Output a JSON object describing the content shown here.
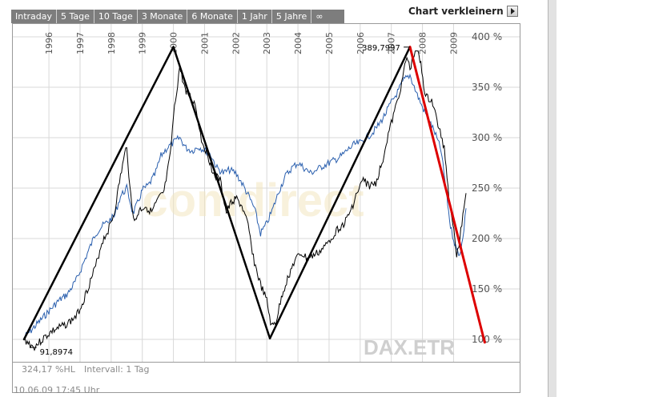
{
  "tabs": [
    "Intraday",
    "5 Tage",
    "10 Tage",
    "3 Monate",
    "6 Monate",
    "1 Jahr",
    "5 Jahre",
    "∞"
  ],
  "shrink_label": "Chart verkleinern",
  "watermark": "DAX.ETR",
  "logo_text": "comdirect",
  "footer": {
    "stat": "324,17 %HL",
    "interval": "Intervall: 1 Tag",
    "timestamp": "10.06.09   17:45 Uhr"
  },
  "colors": {
    "series_black": "#000000",
    "series_blue": "#2a5fae",
    "trend_black": "#000000",
    "trend_red": "#dd0000",
    "grid": "#d8d8d8"
  },
  "chart_data": {
    "type": "line",
    "x_ticks": [
      "1996",
      "1997",
      "1998",
      "1999",
      "2000",
      "2001",
      "2002",
      "2003",
      "2004",
      "2005",
      "2006",
      "2007",
      "2008",
      "2009"
    ],
    "y_ticks": [
      "100 %",
      "150 %",
      "200 %",
      "250 %",
      "300 %",
      "350 %",
      "400 %"
    ],
    "xlim": [
      1995.2,
      2009.4
    ],
    "ylim": [
      95,
      400
    ],
    "annotations": [
      {
        "text": "91,8974",
        "x": 1995.5,
        "y": 92
      },
      {
        "text": "389,7997",
        "x": 2007.5,
        "y": 389.8
      }
    ],
    "series": [
      {
        "values": [
          [
            1995.2,
            100
          ],
          [
            1995.4,
            95
          ],
          [
            1995.5,
            92
          ],
          [
            1995.7,
            97
          ],
          [
            1995.9,
            103
          ],
          [
            1996.1,
            108
          ],
          [
            1996.3,
            111
          ],
          [
            1996.5,
            114
          ],
          [
            1996.7,
            118
          ],
          [
            1996.9,
            124
          ],
          [
            1997.1,
            138
          ],
          [
            1997.3,
            155
          ],
          [
            1997.5,
            172
          ],
          [
            1997.7,
            196
          ],
          [
            1997.9,
            208
          ],
          [
            1998.1,
            225
          ],
          [
            1998.3,
            262
          ],
          [
            1998.5,
            293
          ],
          [
            1998.6,
            250
          ],
          [
            1998.75,
            215
          ],
          [
            1998.9,
            228
          ],
          [
            1999.1,
            232
          ],
          [
            1999.3,
            226
          ],
          [
            1999.5,
            238
          ],
          [
            1999.7,
            246
          ],
          [
            1999.9,
            282
          ],
          [
            2000.0,
            320
          ],
          [
            2000.2,
            370
          ],
          [
            2000.35,
            350
          ],
          [
            2000.5,
            342
          ],
          [
            2000.7,
            333
          ],
          [
            2000.9,
            298
          ],
          [
            2001.1,
            283
          ],
          [
            2001.3,
            263
          ],
          [
            2001.5,
            258
          ],
          [
            2001.7,
            225
          ],
          [
            2001.85,
            235
          ],
          [
            2002.0,
            240
          ],
          [
            2002.2,
            232
          ],
          [
            2002.4,
            212
          ],
          [
            2002.6,
            176
          ],
          [
            2002.8,
            154
          ],
          [
            2003.0,
            138
          ],
          [
            2003.15,
            112
          ],
          [
            2003.3,
            118
          ],
          [
            2003.5,
            145
          ],
          [
            2003.7,
            163
          ],
          [
            2003.9,
            178
          ],
          [
            2004.1,
            185
          ],
          [
            2004.3,
            180
          ],
          [
            2004.5,
            183
          ],
          [
            2004.7,
            187
          ],
          [
            2004.9,
            193
          ],
          [
            2005.1,
            202
          ],
          [
            2005.3,
            210
          ],
          [
            2005.5,
            215
          ],
          [
            2005.7,
            228
          ],
          [
            2005.9,
            245
          ],
          [
            2006.1,
            258
          ],
          [
            2006.3,
            252
          ],
          [
            2006.5,
            255
          ],
          [
            2006.7,
            275
          ],
          [
            2006.9,
            303
          ],
          [
            2007.1,
            325
          ],
          [
            2007.3,
            350
          ],
          [
            2007.5,
            380
          ],
          [
            2007.6,
            368
          ],
          [
            2007.8,
            389.8
          ],
          [
            2007.95,
            372
          ],
          [
            2008.1,
            340
          ],
          [
            2008.3,
            337
          ],
          [
            2008.5,
            313
          ],
          [
            2008.7,
            290
          ],
          [
            2008.85,
            243
          ],
          [
            2008.95,
            222
          ],
          [
            2009.1,
            185
          ],
          [
            2009.2,
            198
          ],
          [
            2009.3,
            225
          ],
          [
            2009.4,
            245
          ]
        ]
      },
      {
        "values": [
          [
            1995.2,
            102
          ],
          [
            1995.4,
            108
          ],
          [
            1995.7,
            118
          ],
          [
            1996.0,
            128
          ],
          [
            1996.3,
            138
          ],
          [
            1996.6,
            145
          ],
          [
            1996.9,
            160
          ],
          [
            1997.1,
            175
          ],
          [
            1997.3,
            190
          ],
          [
            1997.5,
            205
          ],
          [
            1997.7,
            212
          ],
          [
            1997.9,
            217
          ],
          [
            1998.1,
            222
          ],
          [
            1998.3,
            242
          ],
          [
            1998.5,
            250
          ],
          [
            1998.7,
            225
          ],
          [
            1998.85,
            235
          ],
          [
            1999.0,
            248
          ],
          [
            1999.2,
            253
          ],
          [
            1999.4,
            263
          ],
          [
            1999.6,
            282
          ],
          [
            1999.8,
            290
          ],
          [
            2000.0,
            295
          ],
          [
            2000.2,
            300
          ],
          [
            2000.4,
            290
          ],
          [
            2000.6,
            287
          ],
          [
            2000.8,
            291
          ],
          [
            2001.0,
            288
          ],
          [
            2001.2,
            283
          ],
          [
            2001.4,
            270
          ],
          [
            2001.6,
            265
          ],
          [
            2001.8,
            268
          ],
          [
            2002.0,
            265
          ],
          [
            2002.2,
            255
          ],
          [
            2002.4,
            243
          ],
          [
            2002.6,
            230
          ],
          [
            2002.8,
            205
          ],
          [
            2003.0,
            215
          ],
          [
            2003.2,
            230
          ],
          [
            2003.4,
            248
          ],
          [
            2003.6,
            262
          ],
          [
            2003.8,
            270
          ],
          [
            2004.0,
            275
          ],
          [
            2004.2,
            270
          ],
          [
            2004.4,
            265
          ],
          [
            2004.6,
            268
          ],
          [
            2004.8,
            272
          ],
          [
            2005.0,
            275
          ],
          [
            2005.2,
            278
          ],
          [
            2005.4,
            282
          ],
          [
            2005.6,
            288
          ],
          [
            2005.8,
            293
          ],
          [
            2006.0,
            295
          ],
          [
            2006.2,
            300
          ],
          [
            2006.4,
            305
          ],
          [
            2006.6,
            313
          ],
          [
            2006.8,
            323
          ],
          [
            2007.0,
            335
          ],
          [
            2007.2,
            345
          ],
          [
            2007.4,
            357
          ],
          [
            2007.6,
            362
          ],
          [
            2007.8,
            345
          ],
          [
            2008.0,
            330
          ],
          [
            2008.2,
            318
          ],
          [
            2008.4,
            305
          ],
          [
            2008.6,
            287
          ],
          [
            2008.75,
            250
          ],
          [
            2008.9,
            212
          ],
          [
            2009.0,
            200
          ],
          [
            2009.1,
            188
          ],
          [
            2009.2,
            185
          ],
          [
            2009.3,
            200
          ],
          [
            2009.4,
            230
          ]
        ]
      }
    ],
    "trendlines": [
      {
        "points": [
          [
            1995.2,
            100
          ],
          [
            1998.5,
            300
          ]
        ]
      },
      {
        "points": [
          [
            1998.5,
            300
          ],
          [
            2000.0,
            390
          ]
        ]
      },
      {
        "points": [
          [
            2000.0,
            390
          ],
          [
            2003.1,
            101
          ]
        ]
      },
      {
        "points": [
          [
            2003.1,
            101
          ],
          [
            2007.6,
            390
          ]
        ]
      },
      {
        "points": [
          [
            2007.6,
            390
          ],
          [
            2010.0,
            97
          ]
        ]
      }
    ]
  }
}
